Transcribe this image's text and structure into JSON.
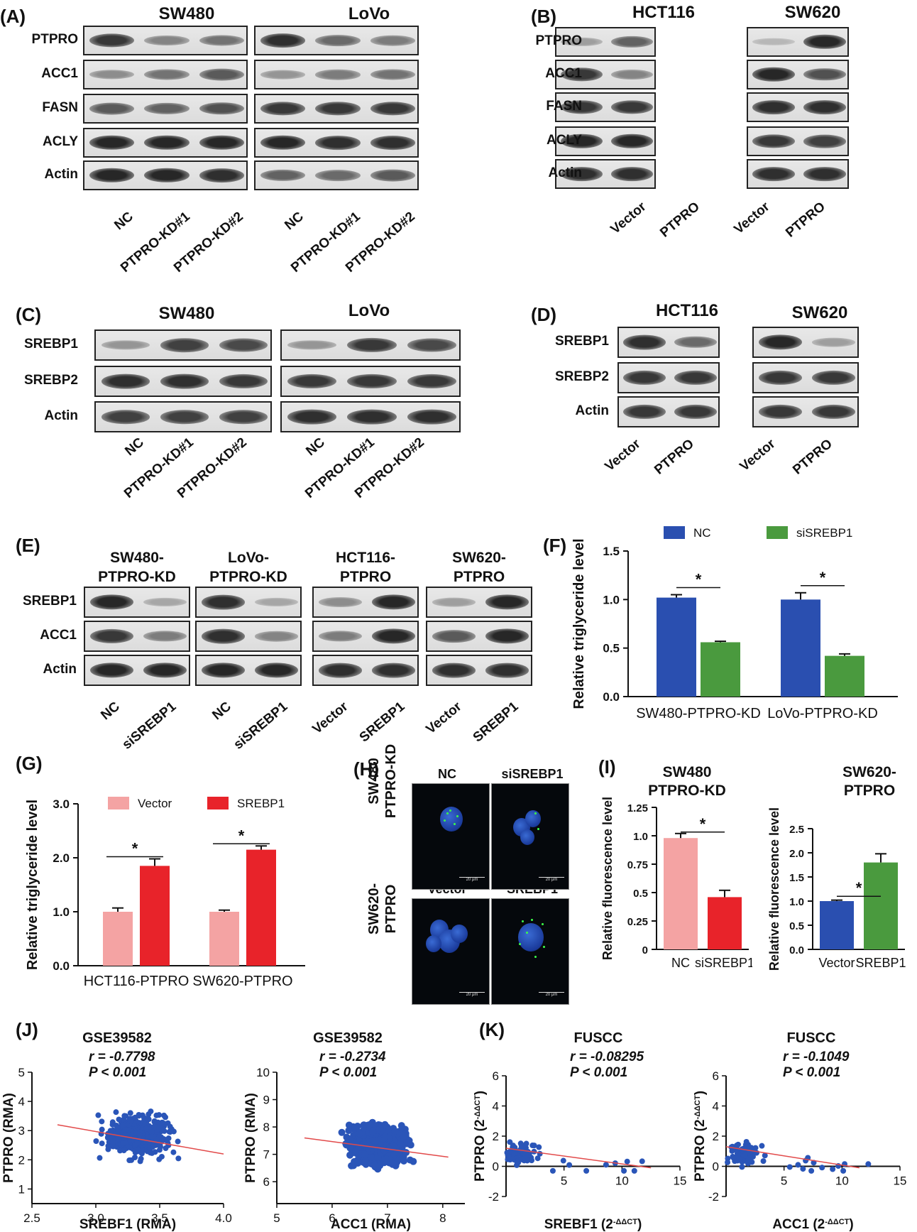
{
  "panels": {
    "A": "(A)",
    "B": "(B)",
    "C": "(C)",
    "D": "(D)",
    "E": "(E)",
    "F": "(F)",
    "G": "(G)",
    "H": "(H)",
    "I": "(I)",
    "J": "(J)",
    "K": "(K)"
  },
  "A": {
    "cell1": "SW480",
    "cell2": "LoVo",
    "rows": [
      "PTPRO",
      "ACC1",
      "FASN",
      "ACLY",
      "Actin"
    ],
    "lanes": [
      "NC",
      "PTPRO-KD#1",
      "PTPRO-KD#2"
    ]
  },
  "B": {
    "cell1": "HCT116",
    "cell2": "SW620",
    "rows": [
      "PTPRO",
      "ACC1",
      "FASN",
      "ACLY",
      "Actin"
    ],
    "lanes": [
      "Vector",
      "PTPRO"
    ]
  },
  "C": {
    "cell1": "SW480",
    "cell2": "LoVo",
    "rows": [
      "SREBP1",
      "SREBP2",
      "Actin"
    ],
    "lanes": [
      "NC",
      "PTPRO-KD#1",
      "PTPRO-KD#2"
    ]
  },
  "D": {
    "cell1": "HCT116",
    "cell2": "SW620",
    "rows": [
      "SREBP1",
      "SREBP2",
      "Actin"
    ],
    "lanes": [
      "Vector",
      "PTPRO"
    ]
  },
  "E": {
    "groups": [
      {
        "l1": "SW480-",
        "l2": "PTPRO-KD",
        "lanes": [
          "NC",
          "siSREBP1"
        ]
      },
      {
        "l1": "LoVo-",
        "l2": "PTPRO-KD",
        "lanes": [
          "NC",
          "siSREBP1"
        ]
      },
      {
        "l1": "HCT116-",
        "l2": "PTPRO",
        "lanes": [
          "Vector",
          "SREBP1"
        ]
      },
      {
        "l1": "SW620-",
        "l2": "PTPRO",
        "lanes": [
          "Vector",
          "SREBP1"
        ]
      }
    ],
    "rows": [
      "SREBP1",
      "ACC1",
      "Actin"
    ]
  },
  "H": {
    "row1": [
      "SW480",
      "PTPRO-KD"
    ],
    "row2": [
      "SW620-",
      "PTPRO"
    ],
    "col1": "NC",
    "col2": "siSREBP1",
    "col3": "Vector",
    "col4": "SREBP1",
    "scale": "20 μm"
  },
  "colors": {
    "blue": "#2a4fb0",
    "green": "#4a9a3e",
    "pink": "#f4a3a3",
    "red": "#e8232a",
    "scatter": "#2a55b8",
    "fit": "#e24a4a"
  },
  "chart_data": [
    {
      "id": "F",
      "type": "bar",
      "ylabel": "Relative triglyceride level",
      "categories": [
        "SW480-PTPRO-KD",
        "LoVo-PTPRO-KD"
      ],
      "series": [
        {
          "name": "NC",
          "values": [
            1.02,
            1.0
          ],
          "err": [
            0.03,
            0.07
          ]
        },
        {
          "name": "siSREBP1",
          "values": [
            0.56,
            0.42
          ],
          "err": [
            0.01,
            0.02
          ]
        }
      ],
      "ylim": [
        0,
        1.5
      ],
      "yticks": [
        "0.0",
        "0.5",
        "1.0",
        "1.5"
      ],
      "sig": "*"
    },
    {
      "id": "G",
      "type": "bar",
      "ylabel": "Relative triglyceride level",
      "categories": [
        "HCT116-PTPRO",
        "SW620-PTPRO"
      ],
      "series": [
        {
          "name": "Vector",
          "values": [
            1.0,
            1.0
          ],
          "err": [
            0.07,
            0.03
          ]
        },
        {
          "name": "SREBP1",
          "values": [
            1.85,
            2.15
          ],
          "err": [
            0.13,
            0.07
          ]
        }
      ],
      "ylim": [
        0,
        3.0
      ],
      "yticks": [
        "0.0",
        "1.0",
        "2.0",
        "3.0"
      ],
      "sig": "*"
    },
    {
      "id": "I1",
      "type": "bar",
      "title": [
        "SW480",
        "PTPRO-KD"
      ],
      "ylabel": "Relative fluorescence level",
      "categories": [
        "NC",
        "siSREBP1"
      ],
      "values": [
        0.98,
        0.46
      ],
      "err": [
        0.04,
        0.06
      ],
      "ylim": [
        0,
        1.25
      ],
      "yticks": [
        "0",
        "0.25",
        "0.5",
        "0.75",
        "1.0",
        "1.25"
      ],
      "sig": "*"
    },
    {
      "id": "I2",
      "type": "bar",
      "title": [
        "SW620-",
        "PTPRO"
      ],
      "ylabel": "Relative fluorescence level",
      "categories": [
        "Vector",
        "SREBP1"
      ],
      "values": [
        1.0,
        1.8
      ],
      "err": [
        0.02,
        0.18
      ],
      "ylim": [
        0,
        2.5
      ],
      "yticks": [
        "0.5",
        "1.0",
        "1.5",
        "2.0",
        "2.5"
      ],
      "sig": "*"
    },
    {
      "id": "J1",
      "type": "scatter",
      "title": "GSE39582",
      "r": "r = -0.7798",
      "p": "P < 0.001",
      "xlabel": "SREBF1 (RMA)",
      "ylabel": "PTPRO (RMA)",
      "xlim": [
        2.5,
        4.0
      ],
      "ylim": [
        0.5,
        5
      ],
      "xticks": [
        "2.5",
        "3.0",
        "3.5",
        "4.0"
      ],
      "yticks": [
        "1",
        "2",
        "3",
        "4",
        "5"
      ],
      "fit": [
        [
          2.7,
          3.2
        ],
        [
          4.0,
          2.2
        ]
      ],
      "n": 520,
      "center": [
        3.33,
        2.85
      ],
      "spread": [
        0.22,
        0.6
      ],
      "seed": 11
    },
    {
      "id": "J2",
      "type": "scatter",
      "title": "GSE39582",
      "r": "r = -0.2734",
      "p": "P < 0.001",
      "xlabel": "ACC1 (RMA)",
      "ylabel": "PTPRO (RMA)",
      "xlim": [
        5,
        8.4
      ],
      "ylim": [
        5.2,
        10
      ],
      "xticks": [
        "5",
        "6",
        "7",
        "8"
      ],
      "yticks": [
        "6",
        "7",
        "8",
        "9",
        "10"
      ],
      "fit": [
        [
          5.5,
          7.6
        ],
        [
          8.1,
          6.9
        ]
      ],
      "n": 700,
      "center": [
        6.8,
        7.3
      ],
      "spread": [
        0.45,
        0.65
      ],
      "seed": 23
    },
    {
      "id": "K1",
      "type": "scatter",
      "title": "FUSCC",
      "r": "r = -0.08295",
      "p": "P < 0.001",
      "xlabel": "SREBF1 (2",
      "xlabel_sup": "-ΔΔCT",
      "xlabel_end": ")",
      "ylabel": "PTPRO (2",
      "ylabel_sup": "-ΔΔCT",
      "ylabel_end": ")",
      "xlim": [
        0,
        15
      ],
      "ylim": [
        -2,
        6
      ],
      "xticks": [
        "5",
        "10",
        "15"
      ],
      "yticks": [
        "-2",
        "0",
        "2",
        "4",
        "6"
      ],
      "fit": [
        [
          0,
          1.2
        ],
        [
          12.5,
          -0.1
        ]
      ],
      "n": 80,
      "center": [
        1.2,
        0.8
      ],
      "spread": [
        1.2,
        0.7
      ],
      "seed": 37
    },
    {
      "id": "K2",
      "type": "scatter",
      "title": "FUSCC",
      "r": "r = -0.1049",
      "p": "P < 0.001",
      "xlabel": "ACC1 (2",
      "xlabel_sup": "-ΔΔCT",
      "xlabel_end": ")",
      "ylabel": "PTPRO (2",
      "ylabel_sup": "-ΔΔCT",
      "ylabel_end": ")",
      "xlim": [
        0,
        15
      ],
      "ylim": [
        -2,
        6
      ],
      "xticks": [
        "5",
        "10",
        "15"
      ],
      "yticks": [
        "-2",
        "0",
        "2",
        "4",
        "6"
      ],
      "fit": [
        [
          0,
          1.3
        ],
        [
          11.5,
          -0.1
        ]
      ],
      "n": 80,
      "center": [
        1.4,
        0.8
      ],
      "spread": [
        1.2,
        0.7
      ],
      "seed": 53
    }
  ]
}
